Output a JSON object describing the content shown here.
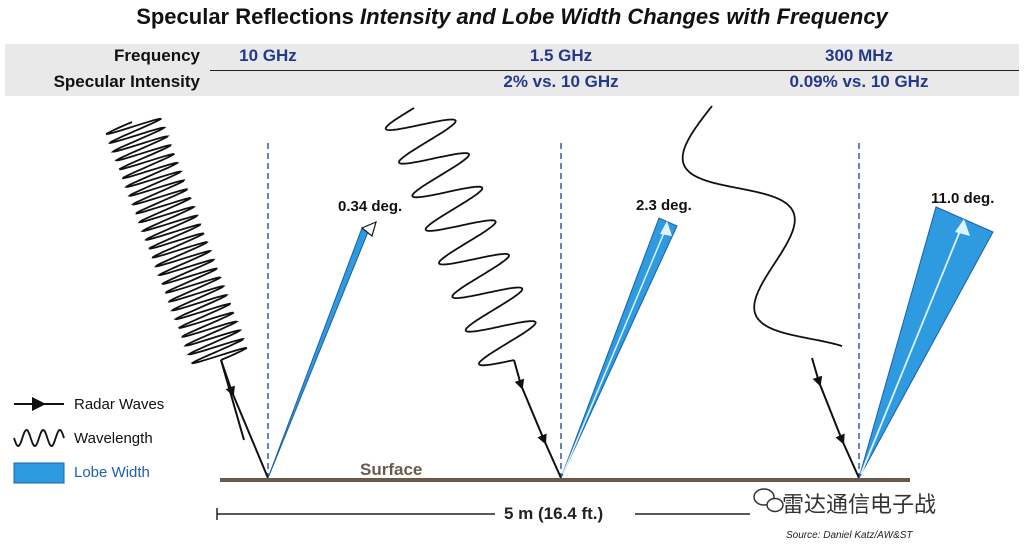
{
  "title": {
    "main": "Specular Reflections",
    "subtitle": "Intensity and Lobe Width Changes with Frequency"
  },
  "header_rows": {
    "frequency_label": "Frequency",
    "intensity_label": "Specular Intensity",
    "columns": [
      {
        "frequency": "10 GHz",
        "intensity": ""
      },
      {
        "frequency": "1.5 GHz",
        "intensity": "2% vs. 10 GHz"
      },
      {
        "frequency": "300 MHz",
        "intensity": "0.09% vs. 10 GHz"
      }
    ]
  },
  "lobes": [
    {
      "angle_label": "0.34 deg."
    },
    {
      "angle_label": "2.3 deg."
    },
    {
      "angle_label": "11.0 deg."
    }
  ],
  "legend": {
    "radar_waves": "Radar Waves",
    "wavelength": "Wavelength",
    "lobe_width": "Lobe Width"
  },
  "surface_label": "Surface",
  "span_label": "5 m (16.4 ft.)",
  "watermark": "雷达通信电子战",
  "source": "Source: Daniel Katz/AW&ST",
  "colors": {
    "header_blue": "#24398b",
    "lobe_blue": "#2e9be0",
    "lobe_outline": "#1b5fa8",
    "surface": "#6b5a4c",
    "band": "#e9e9ea",
    "dash": "#3a56a8"
  },
  "icons": [
    "arrow-icon",
    "wave-icon",
    "lobe-swatch-icon",
    "wechat-icon"
  ]
}
